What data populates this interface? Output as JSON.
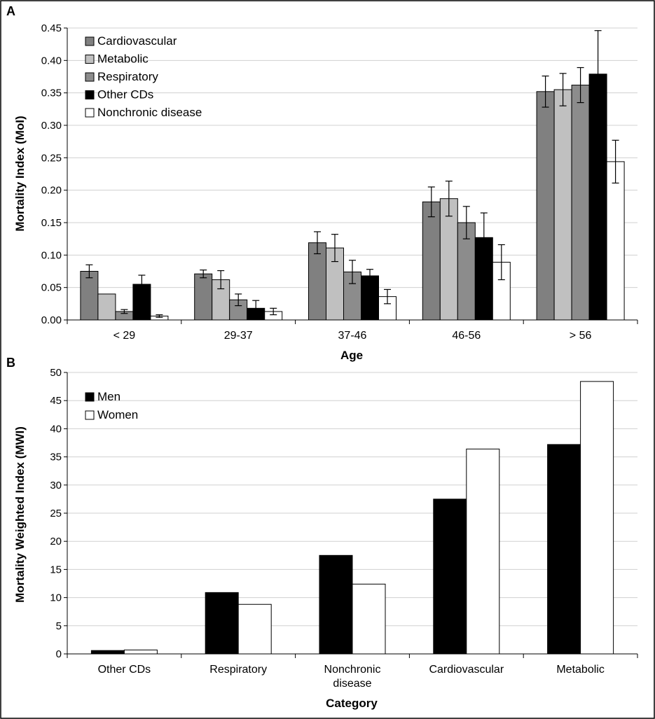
{
  "chart_data": [
    {
      "panel": "A",
      "type": "bar",
      "xlabel": "Age",
      "ylabel": "Mortality Index (MoI)",
      "ylim": [
        0,
        0.45
      ],
      "yticks": [
        "0.00",
        "0.05",
        "0.10",
        "0.15",
        "0.20",
        "0.25",
        "0.30",
        "0.35",
        "0.40",
        "0.45"
      ],
      "categories": [
        "< 29",
        "29-37",
        "37-46",
        "46-56",
        "> 56"
      ],
      "legend_position": "top-left",
      "series": [
        {
          "name": "Cardiovascular",
          "color": "#808080",
          "values": [
            0.075,
            0.071,
            0.119,
            0.182,
            0.352
          ],
          "errors": [
            0.01,
            0.006,
            0.017,
            0.023,
            0.024
          ]
        },
        {
          "name": "Metabolic",
          "color": "#c0c0c0",
          "values": [
            0.04,
            0.062,
            0.111,
            0.187,
            0.355
          ],
          "errors": [
            0.0,
            0.014,
            0.021,
            0.027,
            0.025
          ]
        },
        {
          "name": "Respiratory",
          "color": "#8c8c8c",
          "values": [
            0.013,
            0.031,
            0.074,
            0.15,
            0.362
          ],
          "errors": [
            0.003,
            0.009,
            0.018,
            0.025,
            0.027
          ]
        },
        {
          "name": "Other CDs",
          "color": "#000000",
          "values": [
            0.055,
            0.018,
            0.068,
            0.127,
            0.379
          ],
          "errors": [
            0.014,
            0.012,
            0.01,
            0.038,
            0.067
          ]
        },
        {
          "name": "Nonchronic disease",
          "color": "#ffffff",
          "values": [
            0.006,
            0.013,
            0.036,
            0.089,
            0.244
          ],
          "errors": [
            0.002,
            0.005,
            0.011,
            0.027,
            0.033
          ]
        }
      ]
    },
    {
      "panel": "B",
      "type": "bar",
      "xlabel": "Category",
      "ylabel": "Mortality Weighted Index (MWI)",
      "ylim": [
        0,
        50
      ],
      "yticks": [
        "0",
        "5",
        "10",
        "15",
        "20",
        "25",
        "30",
        "35",
        "40",
        "45",
        "50"
      ],
      "categories": [
        "Other CDs",
        "Respiratory",
        "Nonchronic disease",
        "Cardiovascular",
        "Metabolic"
      ],
      "legend_position": "top-left",
      "series": [
        {
          "name": "Men",
          "color": "#000000",
          "values": [
            0.6,
            10.9,
            17.5,
            27.5,
            37.2
          ]
        },
        {
          "name": "Women",
          "color": "#ffffff",
          "values": [
            0.7,
            8.8,
            12.4,
            36.4,
            48.4
          ]
        }
      ]
    }
  ]
}
